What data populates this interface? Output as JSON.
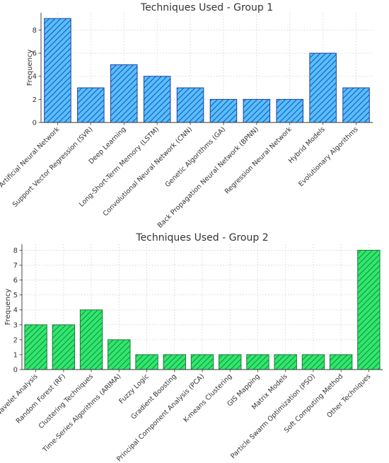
{
  "chart_data": [
    {
      "type": "bar",
      "title": "Techniques Used - Group 1",
      "xlabel": "",
      "ylabel": "Frequency",
      "ylim": [
        0,
        9.5
      ],
      "yticks": [
        0,
        2,
        4,
        6,
        8
      ],
      "grid": true,
      "bar_color": "#55bfff",
      "edge_color": "#1f3f9f",
      "hatch": "diagonal",
      "categories": [
        "Artificial Neural Network",
        "Support Vector Regression (SVR)",
        "Deep Learning",
        "Long-Short-Term Memory (LSTM)",
        "Convolutional Neural Network (CNN)",
        "Genetic Algorithms (GA)",
        "Back Propagation Neural Network (BPNN)",
        "Regression Neural Network",
        "Hybrid Models",
        "Evolutionary Algorithms"
      ],
      "values": [
        9,
        3,
        5,
        4,
        3,
        2,
        2,
        2,
        6,
        3
      ]
    },
    {
      "type": "bar",
      "title": "Techniques Used - Group 2",
      "xlabel": "",
      "ylabel": "Frequency",
      "ylim": [
        0,
        8.4
      ],
      "yticks": [
        0,
        1,
        2,
        3,
        4,
        5,
        6,
        7,
        8
      ],
      "grid": true,
      "bar_color": "#2ee86e",
      "edge_color": "#1e7a36",
      "hatch": "diagonal",
      "categories": [
        "Wavelet Analysis",
        "Random Forest (RF)",
        "Clustering Techniques",
        "Time-Series Algorithms (ARIMA)",
        "Fuzzy Logic",
        "Gradient Boosting",
        "Principal Component Analysis (PCA)",
        "K-means Clustering",
        "GIS Mapping",
        "Matrix Models",
        "Particle Swarm Optimization (PSO)",
        "Soft Computing Method",
        "Other Techniques"
      ],
      "values": [
        3,
        3,
        4,
        2,
        1,
        1,
        1,
        1,
        1,
        1,
        1,
        1,
        8
      ]
    }
  ]
}
